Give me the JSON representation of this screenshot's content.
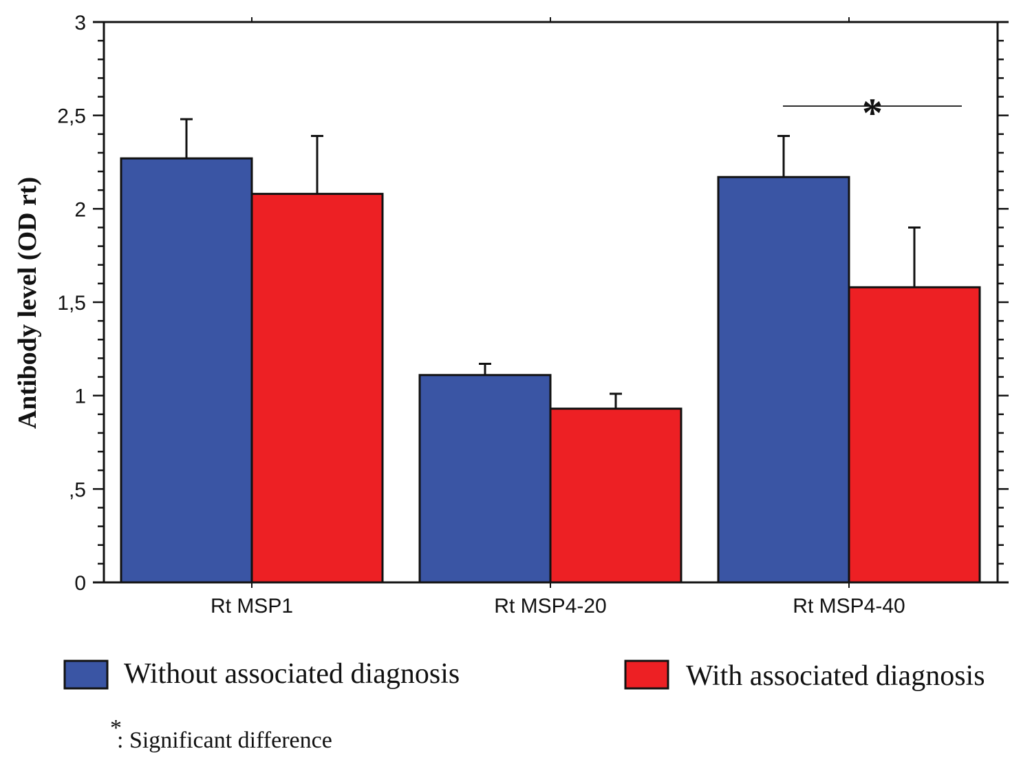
{
  "chart_data": {
    "type": "bar",
    "title": "",
    "xlabel": "",
    "ylabel": "Antibody level (OD rt)",
    "ylim": [
      0,
      3
    ],
    "yticks": [
      0,
      0.5,
      1,
      1.5,
      2,
      2.5,
      3
    ],
    "ytick_labels": [
      "0",
      ",5",
      "1",
      "1,5",
      "2",
      "2,5",
      "3"
    ],
    "minor_tick_step": 0.1,
    "grid": false,
    "categories": [
      "Rt MSP1",
      "Rt MSP4-20",
      "Rt MSP4-40"
    ],
    "series": [
      {
        "name": "Without associated diagnosis",
        "color": "#3A55A4",
        "values": [
          2.27,
          1.11,
          2.17
        ],
        "error_upper": [
          2.48,
          1.17,
          2.39
        ]
      },
      {
        "name": "With associated diagnosis",
        "color": "#ED2024",
        "values": [
          2.08,
          0.93,
          1.58
        ],
        "error_upper": [
          2.39,
          1.01,
          1.9
        ]
      }
    ],
    "annotations": [
      {
        "type": "significance",
        "category": "Rt MSP4-40",
        "label": "*",
        "y": 2.55
      }
    ],
    "legend": {
      "placement": "bottom",
      "entries": [
        "Without associated diagnosis",
        "With associated diagnosis"
      ]
    },
    "footnote": {
      "symbol": "*",
      "text": ": Significant difference"
    }
  }
}
